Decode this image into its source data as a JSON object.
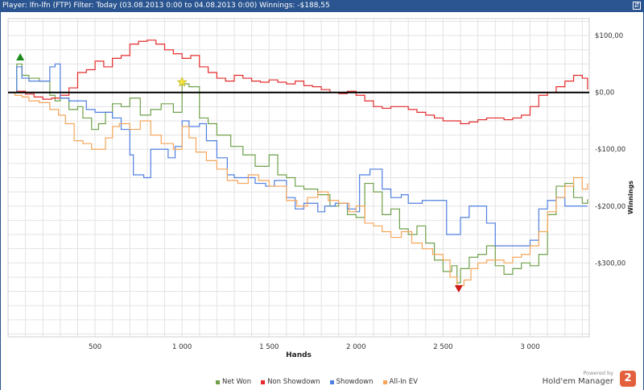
{
  "window": {
    "title": "Player: lfn-lfn (FTP) Filter: Today (03.08.2013 0:00 to 04.08.2013 0:00) Winnings: -$188,55",
    "control_label": "⇵"
  },
  "branding": {
    "powered": "Powered by",
    "product": "Hold'em Manager",
    "logo": "2"
  },
  "colors": {
    "net_won": "#6fa04a",
    "non_showdown": "#e52b2b",
    "showdown": "#4f7fe0",
    "all_in_ev": "#f5a55a",
    "zero_line": "#000000",
    "grid": "#e3e3e3",
    "titlebar": "#2a5590"
  },
  "chart_data": {
    "type": "line",
    "xlabel": "Hands",
    "ylabel": "Winnings",
    "xlim": [
      0,
      3340
    ],
    "ylim": [
      -430,
      130
    ],
    "x_ticks": [
      500,
      1000,
      1500,
      2000,
      2500,
      3000
    ],
    "x_tick_labels": [
      "500",
      "1 000",
      "1 500",
      "2 000",
      "2 500",
      "3 000"
    ],
    "y_ticks": [
      100,
      0,
      -100,
      -200,
      -300
    ],
    "y_tick_labels": [
      "$100,00",
      "$0,00",
      "-$100,00",
      "-$200,00",
      "-$300,00"
    ],
    "grid": true,
    "legend_position": "bottom-center",
    "series": [
      {
        "name": "Net Won",
        "color": "#6fa04a",
        "x": [
          0,
          50,
          80,
          120,
          180,
          240,
          270,
          300,
          350,
          400,
          430,
          480,
          520,
          560,
          600,
          650,
          700,
          760,
          820,
          880,
          950,
          1000,
          1040,
          1100,
          1150,
          1200,
          1280,
          1350,
          1420,
          1500,
          1550,
          1600,
          1650,
          1700,
          1780,
          1850,
          1900,
          1950,
          2000,
          2050,
          2100,
          2150,
          2200,
          2250,
          2300,
          2350,
          2400,
          2450,
          2500,
          2550,
          2580,
          2600,
          2650,
          2700,
          2750,
          2800,
          2850,
          2900,
          2950,
          3000,
          3050,
          3100,
          3150,
          3200,
          3250,
          3300,
          3330
        ],
        "y": [
          0,
          50,
          30,
          25,
          20,
          -5,
          -15,
          -10,
          -30,
          -25,
          -45,
          -65,
          -55,
          -35,
          -20,
          -25,
          -10,
          -40,
          -30,
          -20,
          -35,
          15,
          10,
          -45,
          -55,
          -75,
          -95,
          -110,
          -130,
          -110,
          -145,
          -150,
          -165,
          -170,
          -180,
          -200,
          -195,
          -215,
          -220,
          -160,
          -175,
          -215,
          -205,
          -240,
          -250,
          -235,
          -265,
          -295,
          -315,
          -305,
          -335,
          -310,
          -290,
          -285,
          -270,
          -305,
          -320,
          -310,
          -300,
          -305,
          -285,
          -215,
          -165,
          -160,
          -185,
          -195,
          -188
        ]
      },
      {
        "name": "Non Showdown",
        "color": "#e52b2b",
        "x": [
          0,
          50,
          100,
          150,
          200,
          250,
          300,
          350,
          400,
          450,
          500,
          550,
          600,
          650,
          700,
          750,
          800,
          850,
          900,
          950,
          1000,
          1050,
          1100,
          1150,
          1200,
          1250,
          1300,
          1350,
          1400,
          1450,
          1500,
          1550,
          1600,
          1650,
          1700,
          1750,
          1800,
          1850,
          1900,
          1950,
          2000,
          2050,
          2100,
          2150,
          2200,
          2250,
          2300,
          2350,
          2400,
          2450,
          2500,
          2550,
          2600,
          2650,
          2700,
          2750,
          2800,
          2850,
          2900,
          2950,
          3000,
          3050,
          3100,
          3150,
          3200,
          3250,
          3300,
          3330
        ],
        "y": [
          0,
          2,
          -3,
          -8,
          -12,
          -10,
          -5,
          8,
          35,
          40,
          55,
          45,
          60,
          65,
          85,
          90,
          92,
          85,
          75,
          68,
          60,
          65,
          45,
          35,
          25,
          20,
          30,
          25,
          20,
          18,
          22,
          18,
          15,
          20,
          12,
          10,
          5,
          0,
          -2,
          2,
          -5,
          -15,
          -25,
          -28,
          -25,
          -25,
          -30,
          -35,
          -40,
          -45,
          -50,
          -50,
          -55,
          -52,
          -48,
          -45,
          -45,
          -48,
          -45,
          -40,
          -25,
          -5,
          0,
          10,
          20,
          30,
          25,
          5
        ]
      },
      {
        "name": "Showdown",
        "color": "#4f7fe0",
        "x": [
          0,
          50,
          80,
          120,
          180,
          240,
          270,
          300,
          350,
          400,
          450,
          500,
          550,
          600,
          650,
          700,
          720,
          780,
          820,
          880,
          920,
          960,
          1000,
          1040,
          1100,
          1140,
          1200,
          1260,
          1300,
          1380,
          1420,
          1480,
          1530,
          1600,
          1650,
          1700,
          1780,
          1820,
          1880,
          1950,
          2000,
          2020,
          2080,
          2150,
          2200,
          2260,
          2300,
          2380,
          2420,
          2480,
          2520,
          2560,
          2600,
          2650,
          2700,
          2750,
          2800,
          2850,
          2900,
          2950,
          3000,
          3050,
          3100,
          3150,
          3200,
          3250,
          3300,
          3330
        ],
        "y": [
          0,
          45,
          25,
          20,
          20,
          45,
          50,
          -10,
          -15,
          -15,
          -30,
          -35,
          -35,
          -45,
          -65,
          -110,
          -145,
          -150,
          -100,
          -100,
          -115,
          -95,
          -50,
          -60,
          -55,
          -85,
          -115,
          -145,
          -150,
          -150,
          -160,
          -165,
          -155,
          -185,
          -205,
          -195,
          -210,
          -200,
          -195,
          -205,
          -210,
          -145,
          -135,
          -170,
          -185,
          -180,
          -195,
          -190,
          -190,
          -190,
          -250,
          -250,
          -220,
          -200,
          -200,
          -230,
          -270,
          -270,
          -270,
          -270,
          -260,
          -205,
          -190,
          -185,
          -200,
          -200,
          -200,
          -200
        ]
      },
      {
        "name": "All-In EV",
        "color": "#f5a55a",
        "x": [
          0,
          40,
          80,
          120,
          180,
          240,
          290,
          330,
          380,
          430,
          480,
          520,
          560,
          600,
          640,
          700,
          760,
          820,
          880,
          950,
          1000,
          1040,
          1080,
          1140,
          1200,
          1260,
          1320,
          1380,
          1440,
          1500,
          1540,
          1600,
          1660,
          1720,
          1780,
          1840,
          1900,
          1960,
          2000,
          2050,
          2100,
          2150,
          2200,
          2260,
          2320,
          2380,
          2440,
          2500,
          2540,
          2580,
          2620,
          2660,
          2700,
          2750,
          2800,
          2850,
          2900,
          2950,
          3000,
          3050,
          3100,
          3150,
          3200,
          3250,
          3300,
          3330
        ],
        "y": [
          0,
          -5,
          -8,
          -15,
          -18,
          -30,
          -40,
          -55,
          -85,
          -90,
          -100,
          -100,
          -80,
          -60,
          -55,
          -65,
          -50,
          -75,
          -90,
          -100,
          -60,
          -80,
          -105,
          -120,
          -135,
          -155,
          -160,
          -145,
          -155,
          -165,
          -165,
          -190,
          -200,
          -185,
          -175,
          -190,
          -195,
          -210,
          -200,
          -230,
          -235,
          -245,
          -255,
          -245,
          -265,
          -275,
          -285,
          -295,
          -325,
          -340,
          -330,
          -310,
          -300,
          -295,
          -295,
          -300,
          -290,
          -285,
          -270,
          -245,
          -210,
          -185,
          -165,
          -150,
          -170,
          -160
        ]
      }
    ],
    "markers": [
      {
        "kind": "max-net-won",
        "shape": "triangle-up",
        "color": "#1a8a1a",
        "x": 70,
        "y": 62
      },
      {
        "kind": "min-net-won",
        "shape": "triangle-down",
        "color": "#cc1a1a",
        "x": 2590,
        "y": -345
      },
      {
        "kind": "star",
        "shape": "star",
        "color": "#f4e542",
        "x": 1000,
        "y": 18
      }
    ]
  },
  "legend": [
    {
      "label": "Net Won",
      "color": "#6fa04a"
    },
    {
      "label": "Non Showdown",
      "color": "#e52b2b"
    },
    {
      "label": "Showdown",
      "color": "#4f7fe0"
    },
    {
      "label": "All-In EV",
      "color": "#f5a55a"
    }
  ]
}
